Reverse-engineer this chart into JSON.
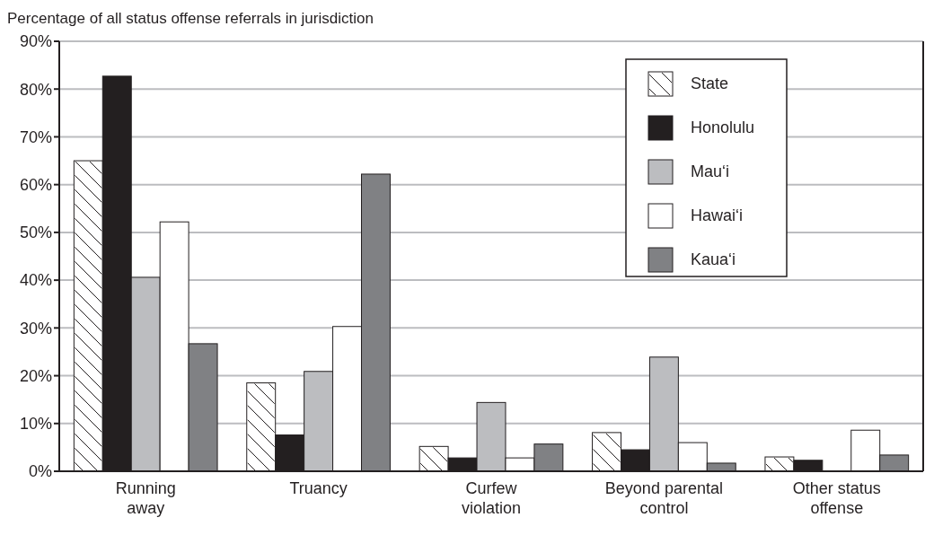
{
  "chart_data": {
    "type": "bar",
    "title": "Percentage of all status offense referrals in jurisdiction",
    "categories": [
      "Running\naway",
      "Truancy",
      "Curfew\nviolation",
      "Beyond parental\ncontrol",
      "Other status\noffense"
    ],
    "series": [
      {
        "name": "State",
        "color": "#ffffff",
        "values": [
          65,
          18.5,
          5.2,
          8.1,
          3.0
        ]
      },
      {
        "name": "Honolulu",
        "color": "#231f20",
        "values": [
          82.7,
          7.6,
          2.8,
          4.5,
          2.3
        ]
      },
      {
        "name": "Mauʻi",
        "color": "#bcbdc0",
        "values": [
          40.6,
          20.9,
          14.4,
          23.9,
          0
        ]
      },
      {
        "name": "Hawaiʻi",
        "color": "#ffffff",
        "values": [
          52.2,
          30.3,
          2.8,
          6.0,
          8.6
        ]
      },
      {
        "name": "Kauaʻi",
        "color": "#808184",
        "values": [
          26.7,
          62.2,
          5.7,
          1.7,
          3.4
        ]
      }
    ],
    "ylim": [
      0,
      90
    ],
    "yticks": [
      {
        "value": 0,
        "label": "0%"
      },
      {
        "value": 10,
        "label": "10%"
      },
      {
        "value": 20,
        "label": "20%"
      },
      {
        "value": 30,
        "label": "30%"
      },
      {
        "value": 40,
        "label": "40%"
      },
      {
        "value": 50,
        "label": "50%"
      },
      {
        "value": 60,
        "label": "60%"
      },
      {
        "value": 70,
        "label": "70%"
      },
      {
        "value": 80,
        "label": "80%"
      },
      {
        "value": 90,
        "label": "90%"
      }
    ],
    "grid": "y",
    "legend": "top right"
  }
}
